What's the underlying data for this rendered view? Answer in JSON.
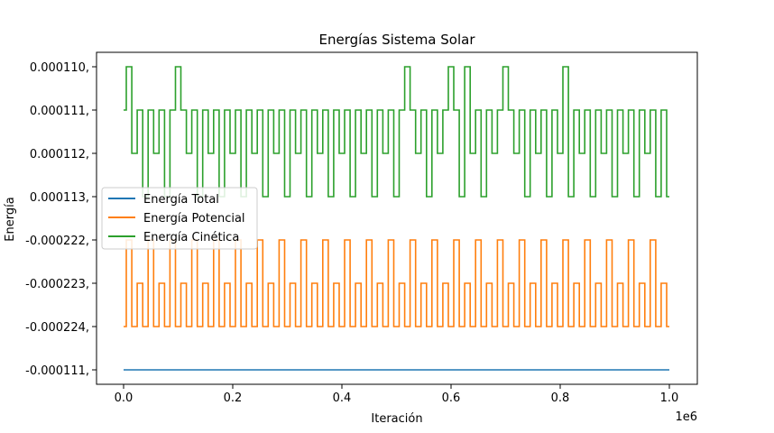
{
  "chart_data": {
    "type": "line",
    "title": "Energías Sistema Solar",
    "xlabel": "Iteración",
    "ylabel": "Energía",
    "x_offset_label": "1e6",
    "x_ticks": [
      {
        "value": 0.0,
        "label": "0.0"
      },
      {
        "value": 0.2,
        "label": "0.2"
      },
      {
        "value": 0.4,
        "label": "0.4"
      },
      {
        "value": 0.6,
        "label": "0.6"
      },
      {
        "value": 0.8,
        "label": "0.8"
      },
      {
        "value": 1.0,
        "label": "1.0"
      }
    ],
    "y_ticks": [
      {
        "level": 0,
        "label": "0.000110,"
      },
      {
        "level": 1,
        "label": "0.000111,"
      },
      {
        "level": 2,
        "label": "0.000112,"
      },
      {
        "level": 3,
        "label": "0.000113,"
      },
      {
        "level": 4,
        "label": "-0.000222,"
      },
      {
        "level": 5,
        "label": "-0.000223,"
      },
      {
        "level": 6,
        "label": "-0.000224,"
      },
      {
        "level": 7,
        "label": "-0.000111,"
      }
    ],
    "xlim": [
      0,
      1.0
    ],
    "legend_position": "center-left",
    "series": [
      {
        "name": "Energía Total",
        "color": "#1f77b4",
        "x": [
          0.0,
          1.0
        ],
        "y_level": [
          7,
          7
        ]
      },
      {
        "name": "Energía Potencial",
        "color": "#ff7f0e",
        "x": [
          0.0,
          0.01,
          0.02,
          0.03,
          0.04,
          0.05,
          0.06,
          0.07,
          0.08,
          0.09,
          0.1,
          0.11,
          0.12,
          0.13,
          0.14,
          0.15,
          0.16,
          0.17,
          0.18,
          0.19,
          0.2,
          0.21,
          0.22,
          0.23,
          0.24,
          0.25,
          0.26,
          0.27,
          0.28,
          0.29,
          0.3,
          0.31,
          0.32,
          0.33,
          0.34,
          0.35,
          0.36,
          0.37,
          0.38,
          0.39,
          0.4,
          0.41,
          0.42,
          0.43,
          0.44,
          0.45,
          0.46,
          0.47,
          0.48,
          0.49,
          0.5,
          0.51,
          0.52,
          0.53,
          0.54,
          0.55,
          0.56,
          0.57,
          0.58,
          0.59,
          0.6,
          0.61,
          0.62,
          0.63,
          0.64,
          0.65,
          0.66,
          0.67,
          0.68,
          0.69,
          0.7,
          0.71,
          0.72,
          0.73,
          0.74,
          0.75,
          0.76,
          0.77,
          0.78,
          0.79,
          0.8,
          0.81,
          0.82,
          0.83,
          0.84,
          0.85,
          0.86,
          0.87,
          0.88,
          0.89,
          0.9,
          0.91,
          0.92,
          0.93,
          0.94,
          0.95,
          0.96,
          0.97,
          0.98,
          0.99,
          1.0
        ],
        "y_level": [
          6,
          4,
          6,
          5,
          6,
          4,
          6,
          5,
          6,
          4,
          6,
          5,
          6,
          4,
          6,
          5,
          6,
          4,
          6,
          5,
          6,
          4,
          6,
          5,
          6,
          4,
          6,
          5,
          6,
          4,
          6,
          5,
          6,
          4,
          6,
          5,
          6,
          4,
          6,
          5,
          6,
          4,
          6,
          5,
          6,
          4,
          6,
          5,
          6,
          4,
          6,
          5,
          6,
          4,
          6,
          5,
          6,
          4,
          6,
          5,
          6,
          4,
          6,
          5,
          6,
          4,
          6,
          5,
          6,
          4,
          6,
          5,
          6,
          4,
          6,
          5,
          6,
          4,
          6,
          5,
          6,
          4,
          6,
          5,
          6,
          4,
          6,
          5,
          6,
          4,
          6,
          5,
          6,
          4,
          6,
          5,
          6,
          4,
          6,
          5,
          6
        ]
      },
      {
        "name": "Energía Cinética",
        "color": "#2ca02c",
        "x": [
          0.0,
          0.01,
          0.02,
          0.03,
          0.04,
          0.05,
          0.06,
          0.07,
          0.08,
          0.09,
          0.1,
          0.11,
          0.12,
          0.13,
          0.14,
          0.15,
          0.16,
          0.17,
          0.18,
          0.19,
          0.2,
          0.21,
          0.22,
          0.23,
          0.24,
          0.25,
          0.26,
          0.27,
          0.28,
          0.29,
          0.3,
          0.31,
          0.32,
          0.33,
          0.34,
          0.35,
          0.36,
          0.37,
          0.38,
          0.39,
          0.4,
          0.41,
          0.42,
          0.43,
          0.44,
          0.45,
          0.46,
          0.47,
          0.48,
          0.49,
          0.5,
          0.51,
          0.52,
          0.53,
          0.54,
          0.55,
          0.56,
          0.57,
          0.58,
          0.59,
          0.6,
          0.61,
          0.62,
          0.63,
          0.64,
          0.65,
          0.66,
          0.67,
          0.68,
          0.69,
          0.7,
          0.71,
          0.72,
          0.73,
          0.74,
          0.75,
          0.76,
          0.77,
          0.78,
          0.79,
          0.8,
          0.81,
          0.82,
          0.83,
          0.84,
          0.85,
          0.86,
          0.87,
          0.88,
          0.89,
          0.9,
          0.91,
          0.92,
          0.93,
          0.94,
          0.95,
          0.96,
          0.97,
          0.98,
          0.99,
          1.0
        ],
        "y_level": [
          1,
          0,
          2,
          1,
          3,
          1,
          2,
          1,
          3,
          1,
          0,
          1,
          2,
          1,
          3,
          1,
          2,
          1,
          3,
          1,
          2,
          1,
          3,
          1,
          2,
          1,
          3,
          1,
          2,
          1,
          3,
          1,
          2,
          1,
          3,
          1,
          2,
          1,
          3,
          1,
          2,
          1,
          3,
          1,
          2,
          1,
          3,
          1,
          2,
          1,
          3,
          1,
          0,
          1,
          2,
          1,
          3,
          1,
          2,
          1,
          0,
          1,
          3,
          0,
          2,
          1,
          3,
          1,
          2,
          1,
          0,
          1,
          2,
          1,
          3,
          1,
          2,
          1,
          3,
          1,
          2,
          0,
          3,
          1,
          2,
          1,
          3,
          1,
          2,
          1,
          3,
          1,
          2,
          1,
          3,
          1,
          2,
          1,
          3,
          1,
          3
        ]
      }
    ]
  }
}
